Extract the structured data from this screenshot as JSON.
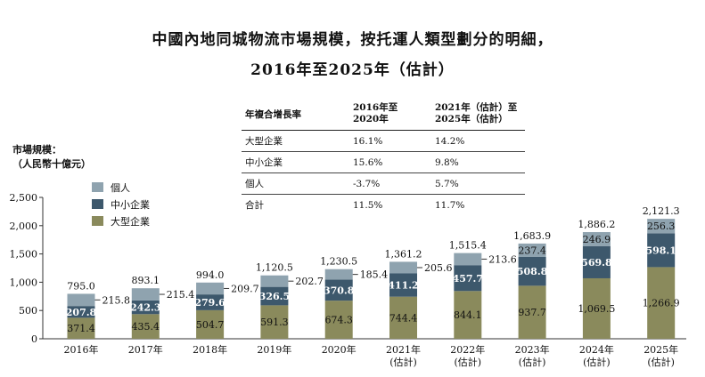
{
  "title": {
    "line1": "中國內地同城物流市場規模，按托運人類型劃分的明細，",
    "line2": "2016年至2025年（估計）"
  },
  "y_axis_label": {
    "line1": "市場規模：",
    "line2": "（人民幣十億元）"
  },
  "cagr_table": {
    "header": [
      "年複合增長率",
      "2016年至\n2020年",
      "2021年（估計）至\n2025年（估計）"
    ],
    "rows": [
      {
        "label": "大型企業",
        "v1": "16.1%",
        "v2": "14.2%"
      },
      {
        "label": "中小企業",
        "v1": "15.6%",
        "v2": "9.8%"
      },
      {
        "label": "個人",
        "v1": "-3.7%",
        "v2": "5.7%"
      },
      {
        "label": "合計",
        "v1": "11.5%",
        "v2": "11.7%"
      }
    ]
  },
  "colors": {
    "large": "#8a8a5c",
    "sme": "#3d586c",
    "individual": "#8fa3af"
  },
  "chart_data": {
    "type": "bar",
    "stacked": true,
    "title": "中國內地同城物流市場規模，按托運人類型劃分的明細，2016年至2025年（估計）",
    "ylabel": "市場規模：（人民幣十億元）",
    "ylim": [
      0,
      2500
    ],
    "yticks": [
      0,
      500,
      1000,
      1500,
      2000,
      2500
    ],
    "ytick_labels": [
      "0",
      "500",
      "1,000",
      "1,500",
      "2,000",
      "2,500"
    ],
    "categories": [
      [
        "2016年"
      ],
      [
        "2017年"
      ],
      [
        "2018年"
      ],
      [
        "2019年"
      ],
      [
        "2020年"
      ],
      [
        "2021年",
        "(估計)"
      ],
      [
        "2022年",
        "(估計)"
      ],
      [
        "2023年",
        "(估計)"
      ],
      [
        "2024年",
        "(估計)"
      ],
      [
        "2025年",
        "(估計)"
      ]
    ],
    "legend": [
      "個人",
      "中小企業",
      "大型企業"
    ],
    "legend_position": "top-left",
    "series": [
      {
        "name": "大型企業",
        "values": [
          371.4,
          435.4,
          504.7,
          591.3,
          674.3,
          744.4,
          844.1,
          937.7,
          1069.5,
          1266.9
        ],
        "labels": [
          "371.4",
          "435.4",
          "504.7",
          "591.3",
          "674.3",
          "744.4",
          "844.1",
          "937.7",
          "1,069.5",
          "1,266.9"
        ]
      },
      {
        "name": "中小企業",
        "values": [
          207.8,
          242.3,
          279.6,
          326.5,
          370.8,
          411.2,
          457.7,
          508.8,
          569.8,
          598.1
        ],
        "labels": [
          "207.8",
          "242.3",
          "279.6",
          "326.5",
          "370.8",
          "411.2",
          "457.7",
          "508.8",
          "569.8",
          "598.1"
        ]
      },
      {
        "name": "個人",
        "values": [
          215.8,
          215.4,
          209.7,
          202.7,
          185.4,
          205.6,
          213.6,
          237.4,
          246.9,
          256.3
        ],
        "labels": [
          "215.8",
          "215.4",
          "209.7",
          "202.7",
          "185.4",
          "205.6",
          "213.6",
          "237.4",
          "246.9",
          "256.3"
        ]
      }
    ],
    "totals": [
      795.0,
      893.1,
      994.0,
      1120.5,
      1230.5,
      1361.2,
      1515.4,
      1683.9,
      1886.2,
      2121.3
    ],
    "total_labels": [
      "795.0",
      "893.1",
      "994.0",
      "1,120.5",
      "1,230.5",
      "1,361.2",
      "1,515.4",
      "1,683.9",
      "1,886.2",
      "2,121.3"
    ]
  }
}
